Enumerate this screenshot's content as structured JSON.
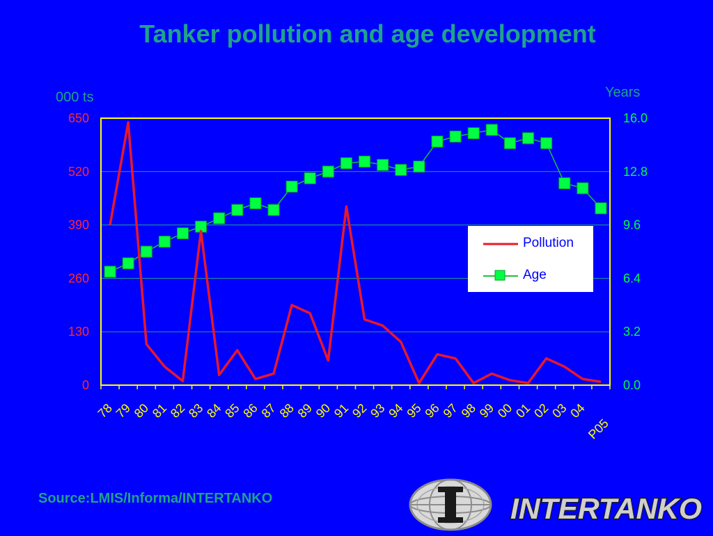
{
  "chart_data": {
    "type": "line",
    "title": "Tanker pollution and age development",
    "ylabel_left": "000 ts",
    "ylabel_right": "Years",
    "ylim_left": [
      0,
      650
    ],
    "ylim_right": [
      0.0,
      16.0
    ],
    "yticks_left": [
      "0",
      "130",
      "260",
      "390",
      "520",
      "650"
    ],
    "yticks_right": [
      "0.0",
      "3.2",
      "6.4",
      "9.6",
      "12.8",
      "16.0"
    ],
    "categories": [
      "78",
      "79",
      "80",
      "81",
      "82",
      "83",
      "84",
      "85",
      "86",
      "87",
      "88",
      "89",
      "90",
      "91",
      "92",
      "93",
      "94",
      "95",
      "96",
      "97",
      "98",
      "99",
      "00",
      "01",
      "02",
      "03",
      "04",
      "P05"
    ],
    "grid": "horizontal",
    "legend_position": "right-middle",
    "series": [
      {
        "name": "Pollution",
        "axis": "left",
        "color": "#e8182a",
        "values": [
          390,
          640,
          100,
          45,
          10,
          375,
          25,
          85,
          15,
          28,
          195,
          175,
          60,
          435,
          160,
          145,
          105,
          5,
          75,
          65,
          5,
          28,
          12,
          5,
          65,
          45,
          15,
          8
        ]
      },
      {
        "name": "Age",
        "axis": "right",
        "color": "#00ff44",
        "marker": "square",
        "values": [
          6.8,
          7.3,
          8.0,
          8.6,
          9.1,
          9.5,
          10.0,
          10.5,
          10.9,
          10.5,
          11.9,
          12.4,
          12.8,
          13.3,
          13.4,
          13.2,
          12.9,
          13.1,
          14.6,
          14.9,
          15.1,
          15.3,
          14.5,
          14.8,
          14.5,
          12.1,
          11.8,
          10.6
        ]
      }
    ]
  },
  "footer": {
    "source": "Source:LMIS/Informa/INTERTANKO",
    "logo_text": "INTERTANKO"
  }
}
